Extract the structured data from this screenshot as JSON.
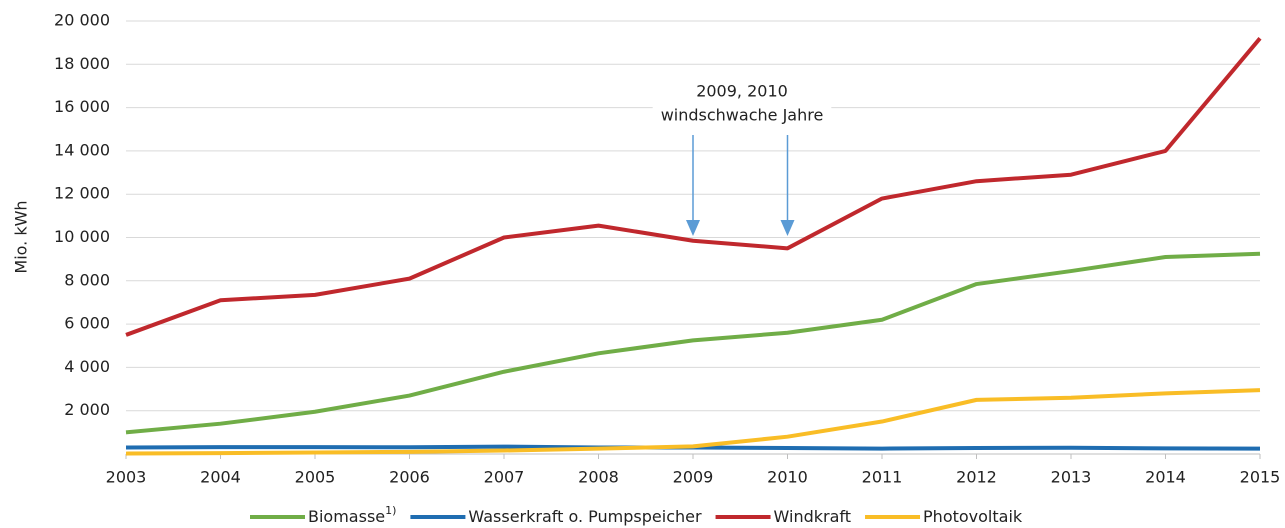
{
  "chart_data": {
    "type": "line",
    "y_label": "Mio. kWh",
    "x": [
      2003,
      2004,
      2005,
      2006,
      2007,
      2008,
      2009,
      2010,
      2011,
      2012,
      2013,
      2014,
      2015
    ],
    "xlim": [
      2003,
      2015
    ],
    "xticks": [
      2003,
      2004,
      2005,
      2006,
      2007,
      2008,
      2009,
      2010,
      2011,
      2012,
      2013,
      2014,
      2015
    ],
    "ylim": [
      0,
      20000
    ],
    "yticks": [
      {
        "value": 2000,
        "label": "2 000"
      },
      {
        "value": 4000,
        "label": "4 000"
      },
      {
        "value": 6000,
        "label": "6 000"
      },
      {
        "value": 8000,
        "label": "8 000"
      },
      {
        "value": 10000,
        "label": "10 000"
      },
      {
        "value": 12000,
        "label": "12 000"
      },
      {
        "value": 14000,
        "label": "14 000"
      },
      {
        "value": 16000,
        "label": "16 000"
      },
      {
        "value": 18000,
        "label": "18 000"
      },
      {
        "value": 20000,
        "label": "20 000"
      }
    ],
    "grid": true,
    "annotation": {
      "lines": [
        "2009, 2010",
        "windschwache Jahre"
      ],
      "arrow_x": [
        2009,
        2010
      ]
    },
    "series": [
      {
        "name": "Biomasse",
        "footnote": "1)",
        "color": "#70ad47",
        "values": [
          1000,
          1400,
          1950,
          2700,
          3800,
          4650,
          5250,
          5600,
          6200,
          7850,
          8450,
          9100,
          9250
        ]
      },
      {
        "name": "Wasserkraft o. Pumpspeicher",
        "color": "#1f6db1",
        "values": [
          300,
          320,
          320,
          310,
          340,
          300,
          300,
          280,
          250,
          280,
          290,
          260,
          250
        ]
      },
      {
        "name": "Windkraft",
        "color": "#c0282d",
        "values": [
          5500,
          7100,
          7350,
          8100,
          10000,
          10550,
          9850,
          9500,
          11800,
          12600,
          12900,
          14000,
          19200
        ]
      },
      {
        "name": "Photovoltaik",
        "color": "#f9bd26",
        "values": [
          20,
          40,
          70,
          100,
          160,
          250,
          350,
          800,
          1500,
          2500,
          2600,
          2800,
          2950
        ]
      }
    ]
  }
}
